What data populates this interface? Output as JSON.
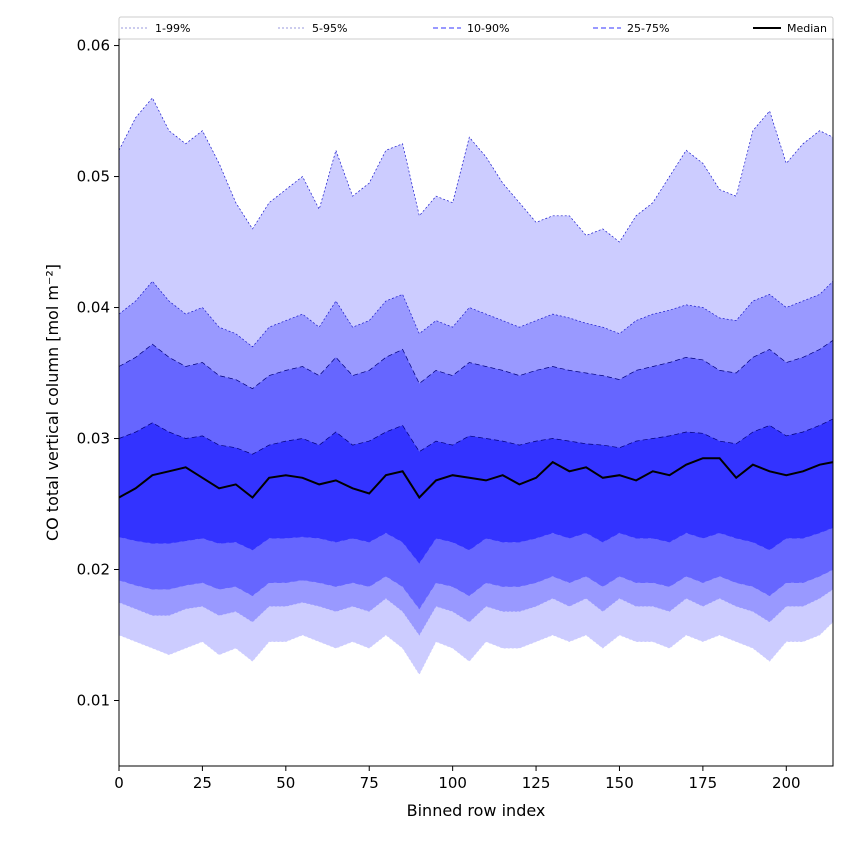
{
  "chart_data": {
    "type": "area",
    "title": "",
    "xlabel": "Binned row index",
    "ylabel": "CO total vertical column [mol m⁻²]",
    "xlim": [
      0,
      214
    ],
    "ylim": [
      0.005,
      0.0605
    ],
    "xticks": [
      0,
      25,
      50,
      75,
      100,
      125,
      150,
      175,
      200
    ],
    "xtick_labels": [
      "0",
      "25",
      "50",
      "75",
      "100",
      "125",
      "150",
      "175",
      "200"
    ],
    "yticks": [
      0.01,
      0.02,
      0.03,
      0.04,
      0.05,
      0.06
    ],
    "ytick_labels": [
      "0.01",
      "0.02",
      "0.03",
      "0.04",
      "0.05",
      "0.06"
    ],
    "grid": false,
    "legend_position": "top",
    "x": [
      0,
      5,
      10,
      15,
      20,
      25,
      30,
      35,
      40,
      45,
      50,
      55,
      60,
      65,
      70,
      75,
      80,
      85,
      90,
      95,
      100,
      105,
      110,
      115,
      120,
      125,
      130,
      135,
      140,
      145,
      150,
      155,
      160,
      165,
      170,
      175,
      180,
      185,
      190,
      195,
      200,
      205,
      210,
      214
    ],
    "median": [
      0.0255,
      0.0262,
      0.0272,
      0.0275,
      0.0278,
      0.027,
      0.0262,
      0.0265,
      0.0255,
      0.027,
      0.0272,
      0.027,
      0.0265,
      0.0268,
      0.0262,
      0.0258,
      0.0272,
      0.0275,
      0.0255,
      0.0268,
      0.0272,
      0.027,
      0.0268,
      0.0272,
      0.0265,
      0.027,
      0.0282,
      0.0275,
      0.0278,
      0.027,
      0.0272,
      0.0268,
      0.0275,
      0.0272,
      0.028,
      0.0285,
      0.0285,
      0.027,
      0.028,
      0.0275,
      0.0272,
      0.0275,
      0.028,
      0.0282
    ],
    "series": [
      {
        "name": "1-99%",
        "color": "#ccccff",
        "lower": [
          0.015,
          0.0145,
          0.014,
          0.0135,
          0.014,
          0.0145,
          0.0135,
          0.014,
          0.013,
          0.0145,
          0.0145,
          0.015,
          0.0145,
          0.014,
          0.0145,
          0.014,
          0.015,
          0.014,
          0.012,
          0.0145,
          0.014,
          0.013,
          0.0145,
          0.014,
          0.014,
          0.0145,
          0.015,
          0.0145,
          0.015,
          0.014,
          0.015,
          0.0145,
          0.0145,
          0.014,
          0.015,
          0.0145,
          0.015,
          0.0145,
          0.014,
          0.013,
          0.0145,
          0.0145,
          0.015,
          0.016
        ],
        "upper": [
          0.052,
          0.0545,
          0.056,
          0.0535,
          0.0525,
          0.0535,
          0.051,
          0.048,
          0.046,
          0.048,
          0.049,
          0.05,
          0.0475,
          0.052,
          0.0485,
          0.0495,
          0.052,
          0.0525,
          0.047,
          0.0485,
          0.048,
          0.053,
          0.0515,
          0.0495,
          0.048,
          0.0465,
          0.047,
          0.047,
          0.0455,
          0.046,
          0.045,
          0.047,
          0.048,
          0.05,
          0.052,
          0.051,
          0.049,
          0.0485,
          0.0535,
          0.055,
          0.051,
          0.0525,
          0.0535,
          0.053
        ]
      },
      {
        "name": "5-95%",
        "color": "#9999ff",
        "lower": [
          0.0175,
          0.017,
          0.0165,
          0.0165,
          0.017,
          0.0172,
          0.0165,
          0.0168,
          0.016,
          0.0172,
          0.0172,
          0.0175,
          0.0172,
          0.0168,
          0.0172,
          0.0168,
          0.0178,
          0.0168,
          0.015,
          0.0172,
          0.0168,
          0.016,
          0.0172,
          0.0168,
          0.0168,
          0.0172,
          0.0178,
          0.0172,
          0.0178,
          0.0168,
          0.0178,
          0.0172,
          0.0172,
          0.0168,
          0.0178,
          0.0172,
          0.0178,
          0.0172,
          0.0168,
          0.016,
          0.0172,
          0.0172,
          0.0178,
          0.0185
        ],
        "upper": [
          0.0395,
          0.0405,
          0.042,
          0.0405,
          0.0395,
          0.04,
          0.0385,
          0.038,
          0.037,
          0.0385,
          0.039,
          0.0395,
          0.0385,
          0.0405,
          0.0385,
          0.039,
          0.0405,
          0.041,
          0.038,
          0.039,
          0.0385,
          0.04,
          0.0395,
          0.039,
          0.0385,
          0.039,
          0.0395,
          0.0392,
          0.0388,
          0.0385,
          0.038,
          0.039,
          0.0395,
          0.0398,
          0.0402,
          0.04,
          0.0392,
          0.039,
          0.0405,
          0.041,
          0.04,
          0.0405,
          0.041,
          0.042
        ]
      },
      {
        "name": "10-90%",
        "color": "#6666ff",
        "lower": [
          0.0192,
          0.0188,
          0.0185,
          0.0185,
          0.0188,
          0.019,
          0.0185,
          0.0187,
          0.018,
          0.019,
          0.019,
          0.0192,
          0.019,
          0.0187,
          0.019,
          0.0187,
          0.0195,
          0.0187,
          0.017,
          0.019,
          0.0187,
          0.018,
          0.019,
          0.0187,
          0.0187,
          0.019,
          0.0195,
          0.019,
          0.0195,
          0.0187,
          0.0195,
          0.019,
          0.019,
          0.0187,
          0.0195,
          0.019,
          0.0195,
          0.019,
          0.0187,
          0.018,
          0.019,
          0.019,
          0.0195,
          0.02
        ],
        "upper": [
          0.0355,
          0.0362,
          0.0372,
          0.0362,
          0.0355,
          0.0358,
          0.0348,
          0.0345,
          0.0338,
          0.0348,
          0.0352,
          0.0355,
          0.0348,
          0.0362,
          0.0348,
          0.0352,
          0.0362,
          0.0368,
          0.0342,
          0.0352,
          0.0348,
          0.0358,
          0.0355,
          0.0352,
          0.0348,
          0.0352,
          0.0355,
          0.0352,
          0.035,
          0.0348,
          0.0345,
          0.0352,
          0.0355,
          0.0358,
          0.0362,
          0.036,
          0.0352,
          0.035,
          0.0362,
          0.0368,
          0.0358,
          0.0362,
          0.0368,
          0.0375
        ]
      },
      {
        "name": "25-75%",
        "color": "#3333ff",
        "lower": [
          0.0225,
          0.0222,
          0.022,
          0.022,
          0.0222,
          0.0224,
          0.022,
          0.0221,
          0.0215,
          0.0224,
          0.0224,
          0.0225,
          0.0224,
          0.0221,
          0.0224,
          0.0221,
          0.0228,
          0.0221,
          0.0205,
          0.0224,
          0.0221,
          0.0215,
          0.0224,
          0.0221,
          0.0221,
          0.0224,
          0.0228,
          0.0224,
          0.0228,
          0.0221,
          0.0228,
          0.0224,
          0.0224,
          0.0221,
          0.0228,
          0.0224,
          0.0228,
          0.0224,
          0.0221,
          0.0215,
          0.0224,
          0.0224,
          0.0228,
          0.0232
        ],
        "upper": [
          0.03,
          0.0305,
          0.0312,
          0.0305,
          0.03,
          0.0302,
          0.0295,
          0.0293,
          0.0288,
          0.0295,
          0.0298,
          0.03,
          0.0295,
          0.0305,
          0.0295,
          0.0298,
          0.0305,
          0.031,
          0.029,
          0.0298,
          0.0295,
          0.0302,
          0.03,
          0.0298,
          0.0295,
          0.0298,
          0.03,
          0.0298,
          0.0296,
          0.0295,
          0.0293,
          0.0298,
          0.03,
          0.0302,
          0.0305,
          0.0304,
          0.0298,
          0.0296,
          0.0305,
          0.031,
          0.0302,
          0.0305,
          0.031,
          0.0315
        ]
      }
    ],
    "legend": [
      {
        "label": "1-99%",
        "color": "#ccccff",
        "dash": "2,2"
      },
      {
        "label": "5-95%",
        "color": "#9999ff",
        "dash": "2,2"
      },
      {
        "label": "10-90%",
        "color": "#6666ff",
        "dash": "5,3"
      },
      {
        "label": "25-75%",
        "color": "#3333ff",
        "dash": "5,3"
      },
      {
        "label": "Median",
        "color": "#000000",
        "dash": ""
      }
    ],
    "median_style": {
      "name": "Median",
      "color": "#000000"
    }
  }
}
